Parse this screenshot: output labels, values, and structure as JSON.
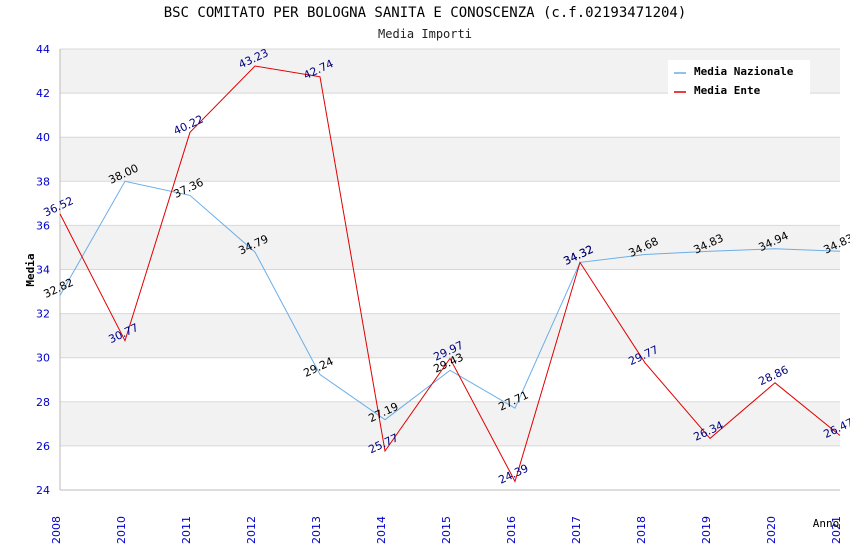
{
  "chart_data": {
    "type": "line",
    "title": "BSC COMITATO PER BOLOGNA SANITA E CONOSCENZA (c.f.02193471204)",
    "subtitle": "Media Importi",
    "xlabel": "Anno",
    "ylabel": "Media",
    "ylim": [
      24,
      44
    ],
    "yticks": [
      24,
      26,
      28,
      30,
      32,
      34,
      36,
      38,
      40,
      42,
      44
    ],
    "categories": [
      "2008",
      "2010",
      "2011",
      "2012",
      "2013",
      "2014",
      "2015",
      "2016",
      "2017",
      "2018",
      "2019",
      "2020",
      "2021"
    ],
    "grid": true,
    "legend_position": "top-right",
    "series": [
      {
        "name": "Media Nazionale",
        "color": "#6aaee8",
        "label_color": "#000000",
        "values": [
          32.82,
          38.0,
          37.36,
          34.79,
          29.24,
          27.19,
          29.43,
          27.71,
          34.32,
          34.68,
          34.83,
          34.94,
          34.83
        ]
      },
      {
        "name": "Media Ente",
        "color": "#e00000",
        "label_color": "#000080",
        "values": [
          36.52,
          30.77,
          40.22,
          43.23,
          42.74,
          25.77,
          29.97,
          24.39,
          34.32,
          29.77,
          26.34,
          28.86,
          26.47
        ]
      }
    ],
    "colors": {
      "axis_tick_label": "#0000cc",
      "band": "#f2f2f2",
      "grid": "#d8d8d8"
    }
  }
}
